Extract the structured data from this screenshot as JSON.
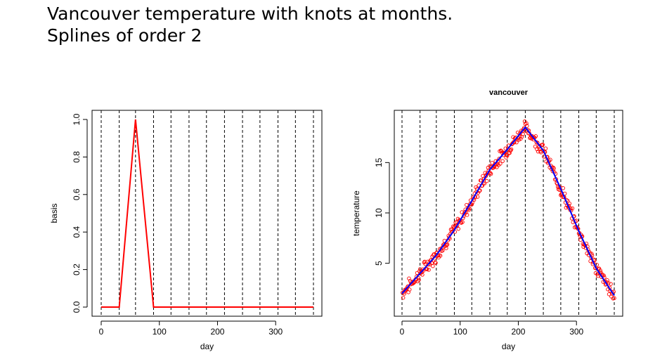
{
  "page": {
    "title_line1": "Vancouver temperature with knots at months.",
    "title_line2": "Splines of order 2"
  },
  "chart_data": [
    {
      "type": "line",
      "title": "",
      "xlabel": "day",
      "ylabel": "basis",
      "xlim": [
        0,
        365
      ],
      "ylim": [
        0,
        1
      ],
      "x_ticks": [
        0,
        100,
        200,
        300
      ],
      "y_ticks": [
        0.0,
        0.2,
        0.4,
        0.6,
        0.8,
        1.0
      ],
      "y_tick_labels": [
        "0.0",
        "0.2",
        "0.4",
        "0.6",
        "0.8",
        "1.0"
      ],
      "knots": [
        0,
        31,
        59,
        90,
        120,
        151,
        181,
        212,
        243,
        273,
        304,
        334,
        365
      ],
      "series": [
        {
          "color": "#ff0000",
          "x": [
            0,
            31,
            59,
            90,
            365
          ],
          "y": [
            0,
            0,
            1,
            0,
            0
          ]
        }
      ]
    },
    {
      "type": "scatter",
      "title": "vancouver",
      "xlabel": "day",
      "ylabel": "temperature",
      "xlim": [
        0,
        365
      ],
      "ylim": [
        1,
        19
      ],
      "x_ticks": [
        0,
        100,
        200,
        300
      ],
      "y_ticks": [
        5,
        10,
        15
      ],
      "knots": [
        0,
        31,
        59,
        90,
        120,
        151,
        181,
        212,
        243,
        273,
        304,
        334,
        365
      ],
      "points_color": "#ff0000",
      "fit_color": "#0000ff",
      "fit_x": [
        0,
        31,
        59,
        90,
        120,
        151,
        181,
        212,
        243,
        273,
        304,
        334,
        365
      ],
      "fit_y": [
        2.0,
        4.0,
        5.8,
        8.3,
        11.2,
        14.3,
        16.3,
        18.5,
        16.2,
        12.4,
        8.2,
        4.5,
        1.8
      ]
    }
  ]
}
